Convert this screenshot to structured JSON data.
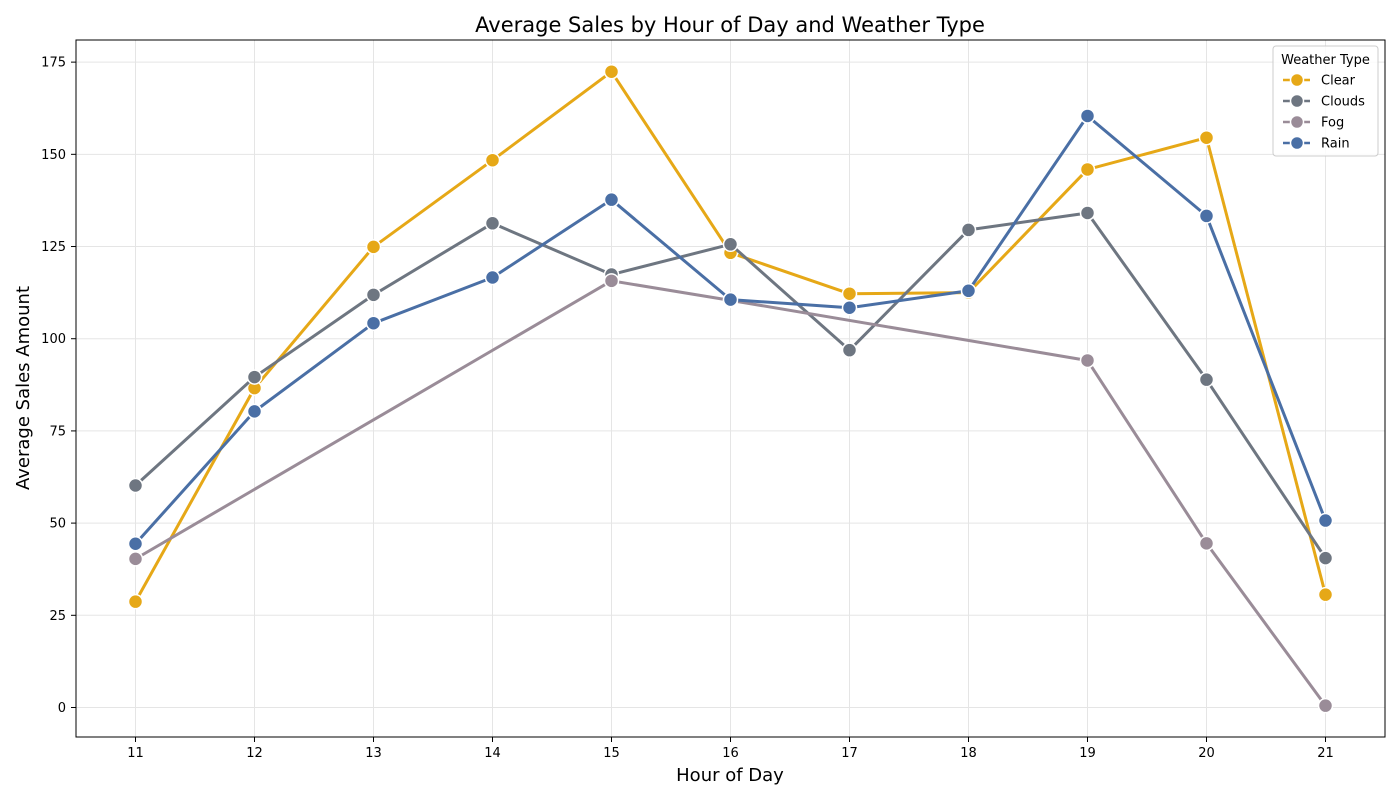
{
  "chart_data": {
    "type": "line",
    "title": "Average Sales by Hour of Day and Weather Type",
    "xlabel": "Hour of Day",
    "ylabel": "Average Sales Amount",
    "x_ticks": [
      11,
      12,
      13,
      14,
      15,
      16,
      17,
      18,
      19,
      20,
      21
    ],
    "y_ticks": [
      0,
      25,
      50,
      75,
      100,
      125,
      150,
      175
    ],
    "xlim": [
      10.5,
      21.5
    ],
    "ylim": [
      -8,
      181
    ],
    "grid": true,
    "legend": {
      "title": "Weather Type",
      "placement": "top-right"
    },
    "series": [
      {
        "name": "Clear",
        "color": "#E6A817",
        "x": [
          11,
          12,
          13,
          14,
          15,
          16,
          17,
          18,
          19,
          20,
          21
        ],
        "y": [
          28.7,
          86.6,
          124.9,
          148.4,
          172.4,
          123.3,
          112.2,
          112.5,
          145.9,
          154.5,
          30.6
        ]
      },
      {
        "name": "Clouds",
        "color": "#6E7681",
        "x": [
          11,
          12,
          13,
          14,
          15,
          16,
          17,
          18,
          19,
          20,
          21
        ],
        "y": [
          60.2,
          89.6,
          111.9,
          131.3,
          117.4,
          125.6,
          96.9,
          129.5,
          134.1,
          88.9,
          40.5
        ]
      },
      {
        "name": "Fog",
        "color": "#9A8C98",
        "x": [
          11,
          15,
          16,
          19,
          20,
          21
        ],
        "y": [
          40.3,
          115.7,
          110.4,
          94.1,
          44.5,
          0.5
        ]
      },
      {
        "name": "Rain",
        "color": "#4A6FA5",
        "x": [
          11,
          12,
          13,
          14,
          15,
          16,
          17,
          18,
          19,
          20,
          21
        ],
        "y": [
          44.4,
          80.3,
          104.2,
          116.6,
          137.7,
          110.6,
          108.4,
          113.0,
          160.4,
          133.3,
          50.7
        ]
      }
    ]
  }
}
